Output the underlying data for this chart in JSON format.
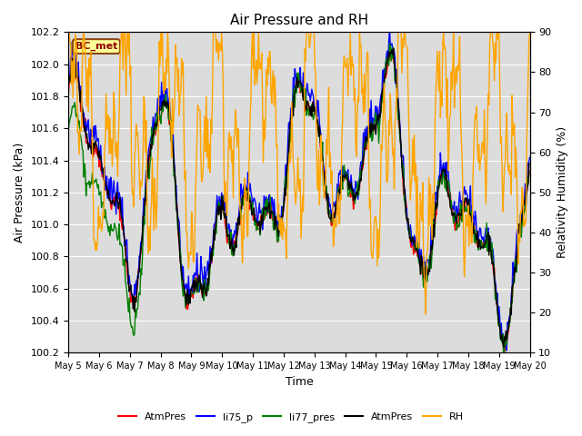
{
  "title": "Air Pressure and RH",
  "xlabel": "Time",
  "ylabel_left": "Air Pressure (kPa)",
  "ylabel_right": "Relativity Humidity (%)",
  "ylim_left": [
    100.2,
    102.2
  ],
  "ylim_right": [
    10,
    90
  ],
  "yticks_left": [
    100.2,
    100.4,
    100.6,
    100.8,
    101.0,
    101.2,
    101.4,
    101.6,
    101.8,
    102.0,
    102.2
  ],
  "yticks_right": [
    10,
    20,
    30,
    40,
    50,
    60,
    70,
    80,
    90
  ],
  "bg_color": "#dcdcdc",
  "legend_labels": [
    "AtmPres",
    "li75_p",
    "li77_pres",
    "AtmPres",
    "RH"
  ],
  "legend_colors": [
    "red",
    "blue",
    "green",
    "black",
    "orange"
  ],
  "station_label": "BC_met",
  "station_box_color": "#ffff99",
  "station_box_edge": "#8B4513",
  "figsize": [
    6.4,
    4.8
  ],
  "dpi": 100
}
